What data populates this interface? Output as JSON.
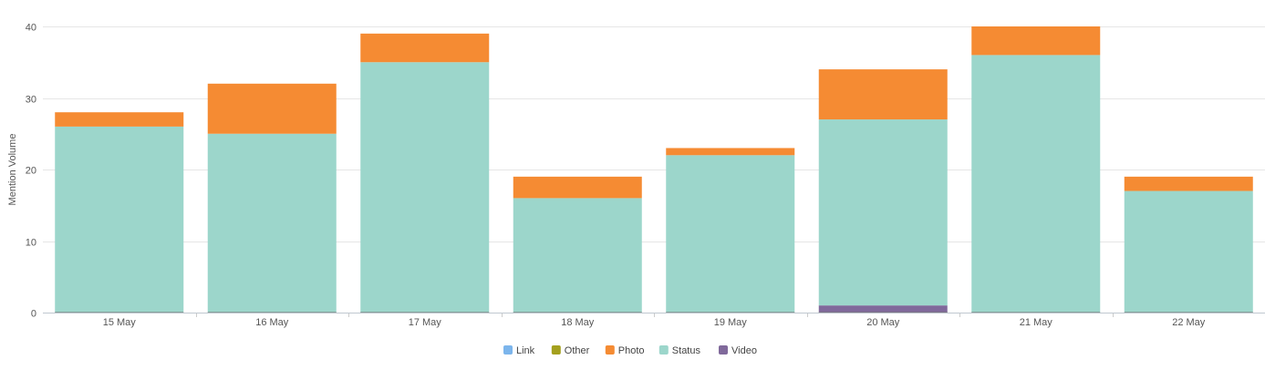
{
  "chart_data": {
    "type": "bar",
    "stacked": true,
    "title": "",
    "xlabel": "",
    "ylabel": "Mention Volume",
    "ylim": [
      0,
      40
    ],
    "yticks": [
      0,
      10,
      20,
      30,
      40
    ],
    "grid": true,
    "legend_position": "bottom-center",
    "categories": [
      "15 May",
      "16 May",
      "17 May",
      "18 May",
      "19 May",
      "20 May",
      "21 May",
      "22 May"
    ],
    "series": [
      {
        "name": "Link",
        "color": "#7cb5ec",
        "values": [
          0,
          0,
          0,
          0,
          0,
          0,
          0,
          0
        ]
      },
      {
        "name": "Other",
        "color": "#a4a01e",
        "values": [
          0,
          0,
          0,
          0,
          0,
          0,
          0,
          0
        ]
      },
      {
        "name": "Video",
        "color": "#80699b",
        "values": [
          0,
          0,
          0,
          0,
          0,
          1,
          0,
          0
        ]
      },
      {
        "name": "Status",
        "color": "#9cd6cb",
        "values": [
          26,
          25,
          35,
          16,
          22,
          26,
          36,
          17
        ]
      },
      {
        "name": "Photo",
        "color": "#f58b33",
        "values": [
          2,
          7,
          4,
          3,
          1,
          7,
          4,
          2
        ]
      }
    ],
    "legend_order": [
      "Link",
      "Other",
      "Photo",
      "Status",
      "Video"
    ]
  }
}
